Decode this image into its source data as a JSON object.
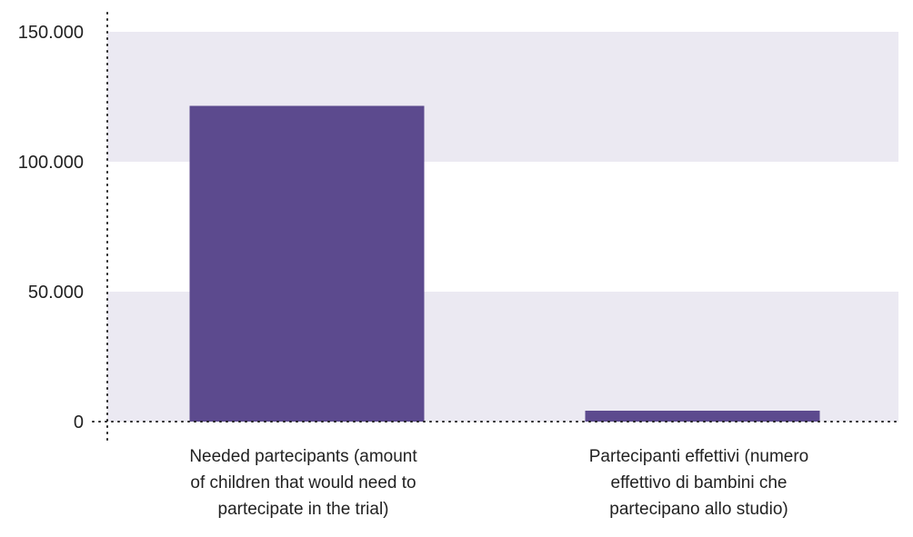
{
  "chart_data": {
    "type": "bar",
    "title": "",
    "xlabel": "",
    "ylabel": "",
    "ylim": [
      0,
      150000
    ],
    "yticks": [
      {
        "value": 0,
        "label": "0"
      },
      {
        "value": 50000,
        "label": "50.000"
      },
      {
        "value": 100000,
        "label": "100.000"
      },
      {
        "value": 150000,
        "label": "150.000"
      }
    ],
    "categories": [
      [
        "Needed partecipants (amount",
        "of children that would need to",
        "partecipate in the trial)"
      ],
      [
        "Partecipanti effettivi (numero",
        "effettivo di bambini che",
        "partecipano allo studio)"
      ]
    ],
    "values": [
      121500,
      4200
    ],
    "grid": "alternating horizontal bands",
    "legend": "none"
  },
  "colors": {
    "bar": "#5c4a8e",
    "band": "#ebe9f2",
    "axis": "#222222"
  }
}
